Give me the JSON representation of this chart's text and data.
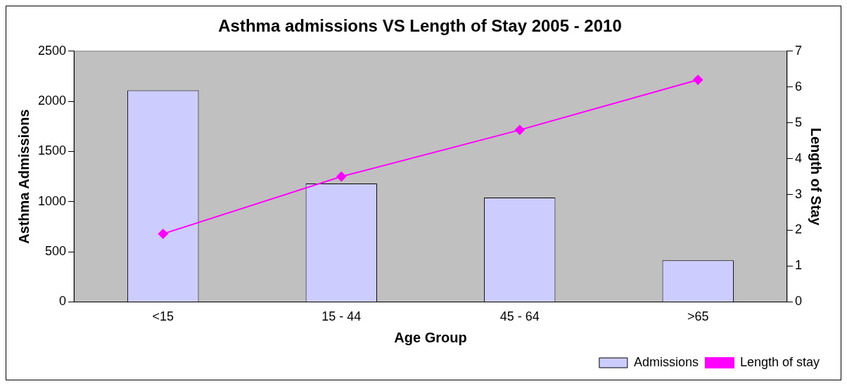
{
  "chart_data": {
    "type": "bar",
    "title": "Asthma admissions VS Length of Stay 2005 - 2010",
    "xlabel": "Age Group",
    "ylabel": "Asthma Admissions",
    "y2label": "Length of Stay",
    "categories": [
      "<15",
      "15 - 44",
      "45 - 64",
      ">65"
    ],
    "series": [
      {
        "name": "Admissions",
        "color": "#ccccff",
        "values": [
          2110,
          1180,
          1040,
          415
        ]
      },
      {
        "name": "Length of stay",
        "type": "line",
        "axis": "y2",
        "color": "#ff00ff",
        "marker": "diamond",
        "values": [
          1.9,
          3.5,
          4.8,
          6.2
        ]
      }
    ],
    "ylim": [
      0,
      2500
    ],
    "yticks": [
      0,
      500,
      1000,
      1500,
      2000,
      2500
    ],
    "y2lim": [
      0,
      7
    ],
    "y2ticks": [
      0,
      1,
      2,
      3,
      4,
      5,
      6,
      7
    ],
    "legend": "bottom right"
  }
}
